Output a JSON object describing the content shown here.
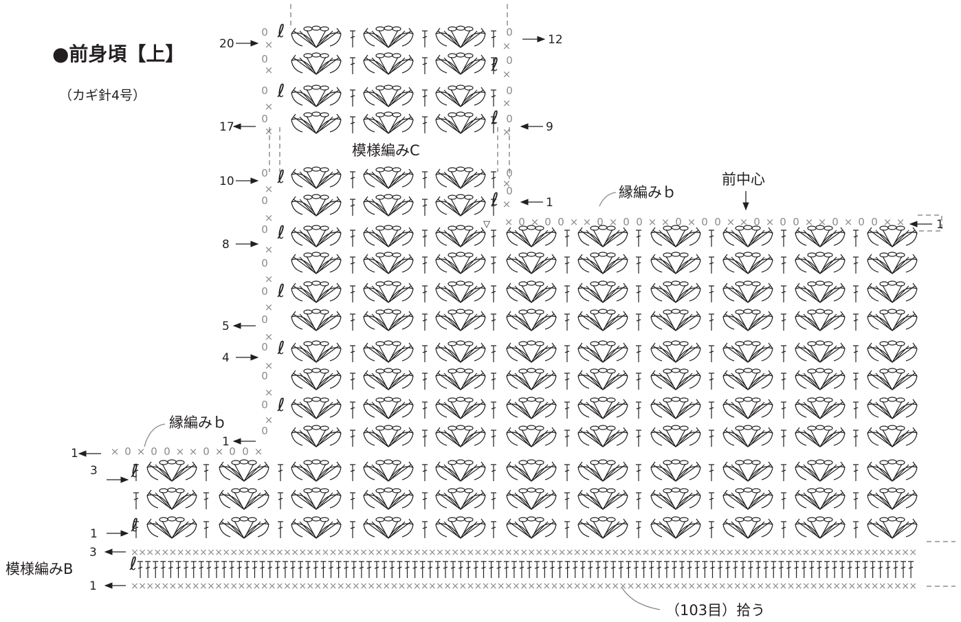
{
  "title": "●前身頃【上】",
  "hook": "（カギ針4号）",
  "labels": {
    "pattern_c": "模様編みC",
    "pattern_b": "模様編みB",
    "edging_upper": "縁編みｂ",
    "edging_lower": "縁編みｂ",
    "front_center": "前中心",
    "pickup": "（103目）拾う"
  },
  "row_numbers": {
    "yoke_left": [
      "20",
      "17",
      "10",
      "8",
      "5",
      "4",
      "1"
    ],
    "yoke_right": [
      "12",
      "9",
      "1"
    ],
    "right_edge": [
      "1"
    ],
    "lower_left": [
      "1",
      "3",
      "1"
    ],
    "band": [
      "3",
      "1"
    ]
  },
  "symbols": {
    "single_crochet": "×",
    "chain": "0",
    "treble": "†",
    "chain_loop": "ℓ"
  },
  "colors": {
    "line": "#231f20",
    "symbol_gray": "#8a8a8a",
    "background": "#ffffff"
  },
  "icons": [
    "arrow-left-icon",
    "arrow-right-icon",
    "arrow-down-icon",
    "fan-stitch-icon"
  ]
}
